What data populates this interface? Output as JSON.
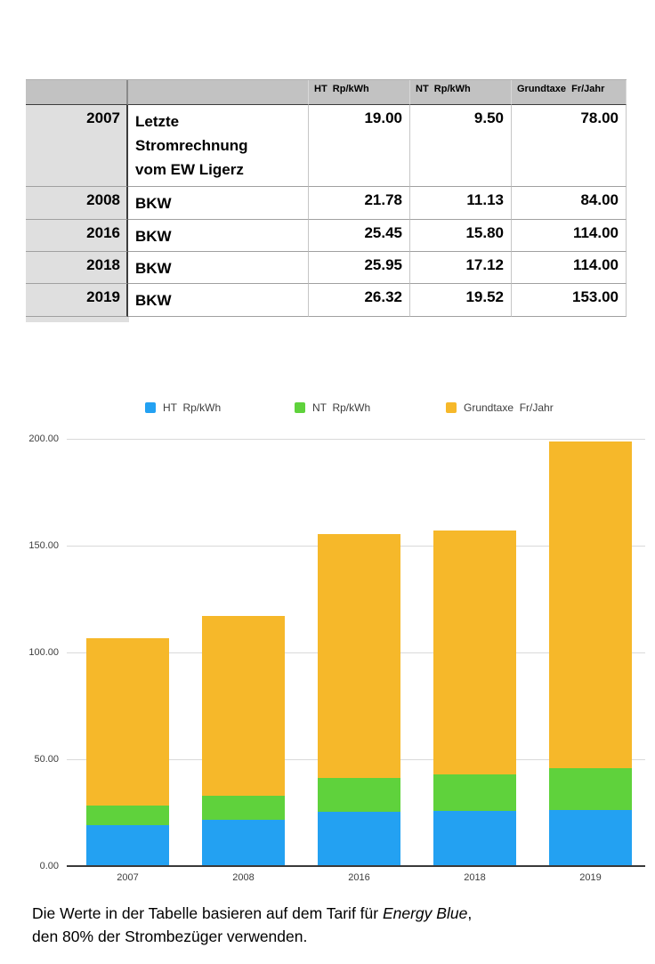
{
  "table": {
    "headers": [
      "",
      "",
      "HT  Rp/kWh",
      "NT  Rp/kWh",
      "Grundtaxe  Fr/Jahr"
    ],
    "rows": [
      {
        "year": "2007",
        "source": "Letzte\nStromrechnung\nvom EW Ligerz",
        "ht": "19.00",
        "nt": "9.50",
        "grundtaxe": "78.00"
      },
      {
        "year": "2008",
        "source": "BKW",
        "ht": "21.78",
        "nt": "11.13",
        "grundtaxe": "84.00"
      },
      {
        "year": "2016",
        "source": "BKW",
        "ht": "25.45",
        "nt": "15.80",
        "grundtaxe": "114.00"
      },
      {
        "year": "2018",
        "source": "BKW",
        "ht": "25.95",
        "nt": "17.12",
        "grundtaxe": "114.00"
      },
      {
        "year": "2019",
        "source": "BKW",
        "ht": "26.32",
        "nt": "19.52",
        "grundtaxe": "153.00"
      }
    ]
  },
  "chart_data": {
    "type": "bar",
    "stacked": true,
    "title": "",
    "xlabel": "",
    "ylabel": "",
    "categories": [
      "2007",
      "2008",
      "2016",
      "2018",
      "2019"
    ],
    "series": [
      {
        "name": "HT  Rp/kWh",
        "color": "#23A1F2",
        "values": [
          19.0,
          21.78,
          25.45,
          25.95,
          26.32
        ]
      },
      {
        "name": "NT  Rp/kWh",
        "color": "#5FD23C",
        "values": [
          9.5,
          11.13,
          15.8,
          17.12,
          19.52
        ]
      },
      {
        "name": "Grundtaxe  Fr/Jahr",
        "color": "#F6B82A",
        "values": [
          78.0,
          84.0,
          114.0,
          114.0,
          153.0
        ]
      }
    ],
    "totals": [
      106.5,
      116.91,
      155.25,
      157.07,
      198.84
    ],
    "ylim": [
      0,
      200
    ],
    "yticks": [
      "200.00",
      "150.00",
      "100.00",
      "50.00",
      "0.00"
    ],
    "grid": true,
    "legend_position": "top"
  },
  "caption": {
    "line1_before_italic": "Die Werte in der Tabelle basieren auf dem Tarif für ",
    "line1_italic": "Energy Blue",
    "line1_after_italic": ",",
    "line2": "den 80% der Strombezüger verwenden."
  }
}
